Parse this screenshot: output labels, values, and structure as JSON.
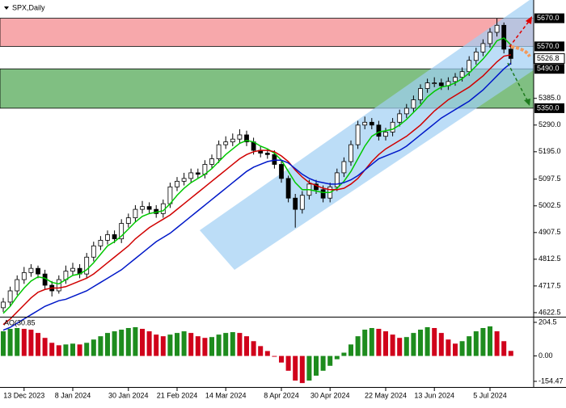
{
  "chart_data": [
    {
      "type": "candlestick",
      "title": "SPX,Daily",
      "categories": [
        null,
        null,
        null,
        "13 Dec 2023",
        null,
        null,
        null,
        null,
        null,
        null,
        "8 Jan 2024",
        null,
        null,
        null,
        null,
        null,
        null,
        null,
        "30 Jan 2024",
        null,
        null,
        null,
        null,
        null,
        null,
        "21 Feb 2024",
        null,
        null,
        null,
        null,
        null,
        null,
        "14 Mar 2024",
        null,
        null,
        null,
        null,
        null,
        null,
        null,
        "8 Apr 2024",
        null,
        null,
        null,
        null,
        null,
        null,
        "30 Apr 2024",
        null,
        null,
        null,
        null,
        null,
        null,
        null,
        "22 May 2024",
        null,
        null,
        null,
        null,
        null,
        null,
        "13 Jun 2024",
        null,
        null,
        null,
        null,
        null,
        null,
        null,
        "5 Jul 2024",
        null,
        null,
        null
      ],
      "open": [
        4640,
        4660,
        4700,
        4740,
        4765,
        4780,
        4760,
        4720,
        4700,
        4740,
        4770,
        4780,
        4760,
        4820,
        4860,
        4880,
        4900,
        4885,
        4940,
        4960,
        4990,
        5000,
        4990,
        4975,
        5010,
        5070,
        5090,
        5100,
        5120,
        5115,
        5150,
        5170,
        5220,
        5230,
        5240,
        5255,
        5230,
        5200,
        5190,
        5185,
        5150,
        5100,
        5030,
        4990,
        5040,
        5080,
        5060,
        5030,
        5070,
        5120,
        5160,
        5220,
        5290,
        5300,
        5290,
        5250,
        5265,
        5300,
        5330,
        5350,
        5380,
        5420,
        5440,
        5440,
        5430,
        5445,
        5460,
        5480,
        5520,
        5550,
        5580,
        5620,
        5645,
        5560
      ],
      "high": [
        4675,
        4715,
        4755,
        4785,
        4795,
        4790,
        4775,
        4735,
        4755,
        4790,
        4800,
        4795,
        4835,
        4875,
        4895,
        4915,
        4915,
        4955,
        4975,
        5005,
        5020,
        5015,
        5005,
        5025,
        5085,
        5105,
        5120,
        5135,
        5135,
        5165,
        5185,
        5235,
        5250,
        5260,
        5275,
        5270,
        5245,
        5215,
        5205,
        5200,
        5165,
        5110,
        5045,
        5055,
        5095,
        5095,
        5075,
        5085,
        5135,
        5175,
        5235,
        5305,
        5320,
        5315,
        5305,
        5280,
        5315,
        5345,
        5365,
        5395,
        5435,
        5455,
        5460,
        5455,
        5460,
        5475,
        5495,
        5535,
        5565,
        5595,
        5635,
        5670,
        5655,
        5575
      ],
      "low": [
        4625,
        4645,
        4685,
        4725,
        4750,
        4745,
        4705,
        4680,
        4690,
        4725,
        4755,
        4745,
        4745,
        4805,
        4845,
        4865,
        4870,
        4870,
        4925,
        4945,
        4975,
        4975,
        4960,
        4960,
        4995,
        5055,
        5075,
        5085,
        5100,
        5100,
        5135,
        5155,
        5205,
        5215,
        5225,
        5215,
        5185,
        5175,
        5170,
        5135,
        5085,
        5015,
        4925,
        4975,
        5025,
        5045,
        5015,
        5015,
        5055,
        5105,
        5145,
        5205,
        5275,
        5275,
        5235,
        5235,
        5250,
        5285,
        5315,
        5335,
        5365,
        5405,
        5425,
        5415,
        5415,
        5430,
        5445,
        5465,
        5505,
        5535,
        5565,
        5605,
        5545,
        5505
      ],
      "close": [
        4660,
        4700,
        4740,
        4765,
        4780,
        4760,
        4720,
        4700,
        4740,
        4770,
        4780,
        4760,
        4820,
        4860,
        4880,
        4900,
        4885,
        4940,
        4960,
        4990,
        5000,
        4990,
        4975,
        5010,
        5070,
        5090,
        5100,
        5120,
        5115,
        5150,
        5170,
        5220,
        5230,
        5240,
        5255,
        5230,
        5200,
        5190,
        5185,
        5150,
        5100,
        5030,
        4990,
        5040,
        5080,
        5060,
        5030,
        5070,
        5120,
        5160,
        5220,
        5290,
        5300,
        5290,
        5250,
        5265,
        5300,
        5330,
        5350,
        5380,
        5420,
        5440,
        5440,
        5430,
        5445,
        5460,
        5480,
        5520,
        5550,
        5580,
        5620,
        5645,
        5560,
        5527
      ],
      "up_color": "#ffffff",
      "down_color": "#000000",
      "lines": [
        {
          "color": "#00c800",
          "values": [
            4620,
            4645,
            4680,
            4710,
            4735,
            4750,
            4745,
            4730,
            4725,
            4740,
            4755,
            4760,
            4775,
            4800,
            4830,
            4860,
            4875,
            4895,
            4920,
            4945,
            4965,
            4975,
            4980,
            4985,
            5010,
            5040,
            5065,
            5085,
            5100,
            5115,
            5135,
            5160,
            5185,
            5205,
            5225,
            5235,
            5230,
            5215,
            5205,
            5190,
            5165,
            5125,
            5085,
            5060,
            5060,
            5055,
            5050,
            5050,
            5065,
            5090,
            5125,
            5170,
            5215,
            5250,
            5265,
            5270,
            5275,
            5290,
            5310,
            5335,
            5360,
            5390,
            5410,
            5425,
            5430,
            5440,
            5455,
            5475,
            5500,
            5525,
            5555,
            5590,
            5600,
            5575
          ]
        },
        {
          "color": "#d00000",
          "values": [
            4580,
            4600,
            4625,
            4650,
            4675,
            4695,
            4705,
            4710,
            4710,
            4715,
            4725,
            4735,
            4745,
            4760,
            4780,
            4800,
            4820,
            4840,
            4860,
            4885,
            4905,
            4925,
            4940,
            4955,
            4970,
            4990,
            5010,
            5030,
            5050,
            5070,
            5090,
            5110,
            5130,
            5150,
            5170,
            5185,
            5195,
            5200,
            5200,
            5195,
            5180,
            5160,
            5130,
            5105,
            5085,
            5075,
            5065,
            5060,
            5060,
            5065,
            5080,
            5100,
            5130,
            5160,
            5185,
            5205,
            5220,
            5235,
            5250,
            5270,
            5290,
            5315,
            5340,
            5360,
            5380,
            5395,
            5410,
            5425,
            5445,
            5465,
            5490,
            5515,
            5535,
            5540
          ]
        },
        {
          "color": "#0018c8",
          "values": [
            4560,
            4570,
            4585,
            4600,
            4615,
            4630,
            4645,
            4655,
            4665,
            4670,
            4680,
            4690,
            4700,
            4715,
            4730,
            4745,
            4760,
            4775,
            4795,
            4815,
            4835,
            4855,
            4875,
            4890,
            4905,
            4925,
            4945,
            4965,
            4985,
            5005,
            5025,
            5045,
            5065,
            5085,
            5105,
            5125,
            5140,
            5150,
            5160,
            5165,
            5165,
            5155,
            5135,
            5115,
            5100,
            5090,
            5085,
            5080,
            5080,
            5085,
            5095,
            5110,
            5130,
            5150,
            5170,
            5180,
            5190,
            5200,
            5215,
            5235,
            5255,
            5275,
            5295,
            5315,
            5330,
            5345,
            5360,
            5375,
            5395,
            5415,
            5440,
            5465,
            5490,
            5510
          ]
        }
      ],
      "zones": [
        {
          "from": 5570,
          "to": 5670,
          "color": "#f7a8ab"
        },
        {
          "from": 5350,
          "to": 5490,
          "color": "#80bf82"
        }
      ],
      "ylim": [
        4608,
        5735
      ],
      "yticks": [
        4622.5,
        4717.5,
        4812.5,
        4907.5,
        5002.5,
        5097.5,
        {
          "value": 5195,
          "label": "5195.0"
        },
        {
          "value": 5290,
          "label": "5290.0"
        },
        {
          "value": 5385,
          "label": "5385.0"
        }
      ],
      "price_labels": [
        {
          "value": 5670,
          "label": "5670.0"
        },
        {
          "value": 5570,
          "label": "5570.0"
        },
        {
          "value": 5490,
          "label": "5490.0"
        },
        {
          "value": 5350,
          "label": "5350.0"
        }
      ],
      "last_price": {
        "value": 5526.8,
        "label": "5526.8"
      }
    },
    {
      "type": "bar",
      "title": "AO(30.85",
      "values": [
        150,
        165,
        170,
        165,
        160,
        140,
        110,
        80,
        65,
        70,
        75,
        70,
        80,
        100,
        120,
        140,
        150,
        160,
        170,
        175,
        165,
        150,
        130,
        120,
        130,
        140,
        150,
        140,
        120,
        110,
        115,
        130,
        140,
        145,
        140,
        120,
        90,
        60,
        30,
        0,
        -40,
        -90,
        -150,
        -165,
        -150,
        -120,
        -90,
        -60,
        -20,
        20,
        70,
        120,
        160,
        170,
        165,
        150,
        130,
        110,
        115,
        140,
        160,
        175,
        170,
        140,
        100,
        75,
        90,
        120,
        150,
        170,
        180,
        150,
        90,
        30.85
      ],
      "up_color": "#1e8c1e",
      "down_color": "#d0021b",
      "ylim": [
        -184,
        229
      ],
      "yticks": [
        204.5,
        {
          "value": 0,
          "label": "0.00"
        },
        -154.47
      ]
    }
  ]
}
